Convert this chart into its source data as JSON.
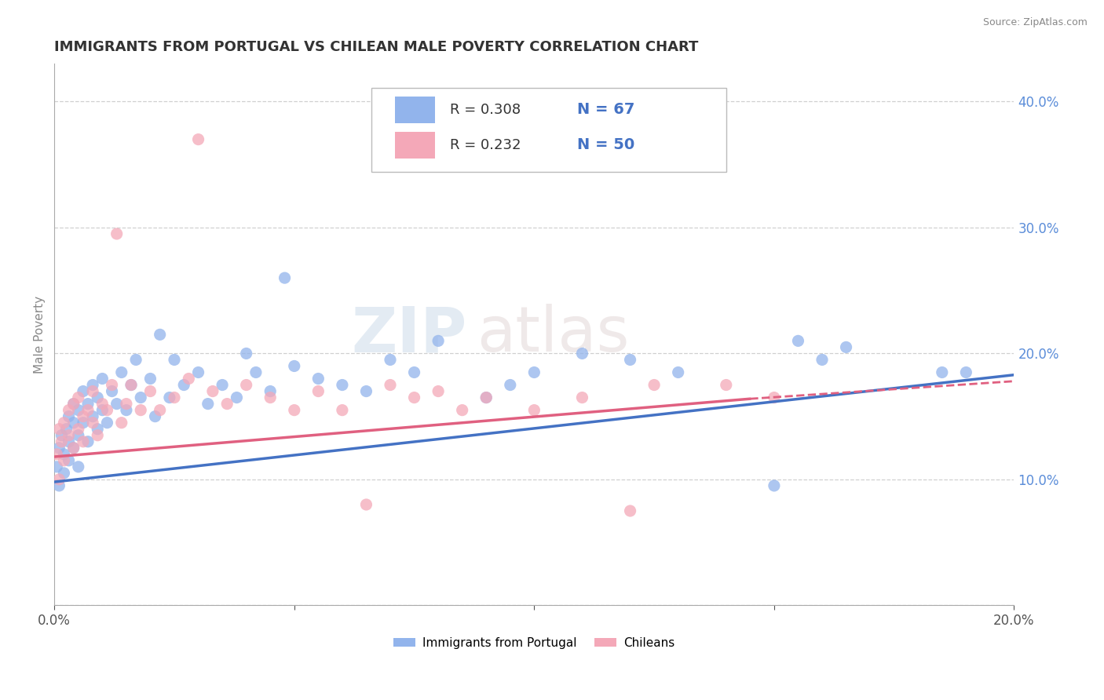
{
  "title": "IMMIGRANTS FROM PORTUGAL VS CHILEAN MALE POVERTY CORRELATION CHART",
  "source": "Source: ZipAtlas.com",
  "ylabel": "Male Poverty",
  "xlim": [
    0.0,
    0.2
  ],
  "ylim": [
    0.0,
    0.43
  ],
  "x_ticks": [
    0.0,
    0.05,
    0.1,
    0.15,
    0.2
  ],
  "x_tick_labels": [
    "0.0%",
    "",
    "",
    "",
    "20.0%"
  ],
  "y_ticks": [
    0.0,
    0.1,
    0.2,
    0.3,
    0.4
  ],
  "y_tick_labels": [
    "",
    "10.0%",
    "20.0%",
    "30.0%",
    "40.0%"
  ],
  "legend1_label": "Immigrants from Portugal",
  "legend2_label": "Chileans",
  "R1": 0.308,
  "N1": 67,
  "R2": 0.232,
  "N2": 50,
  "color1": "#92B4EC",
  "color2": "#F4A8B8",
  "line1_color": "#4472C4",
  "line2_color": "#E06080",
  "watermark_zip": "ZIP",
  "watermark_atlas": "atlas",
  "background_color": "#ffffff",
  "grid_color": "#d0d0d0",
  "title_color": "#333333",
  "blue_scatter_x": [
    0.0005,
    0.001,
    0.001,
    0.0015,
    0.002,
    0.002,
    0.0025,
    0.003,
    0.003,
    0.003,
    0.004,
    0.004,
    0.004,
    0.005,
    0.005,
    0.005,
    0.006,
    0.006,
    0.007,
    0.007,
    0.008,
    0.008,
    0.009,
    0.009,
    0.01,
    0.01,
    0.011,
    0.012,
    0.013,
    0.014,
    0.015,
    0.016,
    0.017,
    0.018,
    0.02,
    0.021,
    0.022,
    0.024,
    0.025,
    0.027,
    0.03,
    0.032,
    0.035,
    0.038,
    0.04,
    0.042,
    0.045,
    0.048,
    0.05,
    0.055,
    0.06,
    0.065,
    0.07,
    0.075,
    0.08,
    0.09,
    0.095,
    0.1,
    0.11,
    0.12,
    0.13,
    0.15,
    0.155,
    0.16,
    0.165,
    0.185,
    0.19
  ],
  "blue_scatter_y": [
    0.11,
    0.125,
    0.095,
    0.135,
    0.12,
    0.105,
    0.14,
    0.13,
    0.115,
    0.15,
    0.125,
    0.145,
    0.16,
    0.11,
    0.135,
    0.155,
    0.145,
    0.17,
    0.13,
    0.16,
    0.15,
    0.175,
    0.14,
    0.165,
    0.155,
    0.18,
    0.145,
    0.17,
    0.16,
    0.185,
    0.155,
    0.175,
    0.195,
    0.165,
    0.18,
    0.15,
    0.215,
    0.165,
    0.195,
    0.175,
    0.185,
    0.16,
    0.175,
    0.165,
    0.2,
    0.185,
    0.17,
    0.26,
    0.19,
    0.18,
    0.175,
    0.17,
    0.195,
    0.185,
    0.21,
    0.165,
    0.175,
    0.185,
    0.2,
    0.195,
    0.185,
    0.095,
    0.21,
    0.195,
    0.205,
    0.185,
    0.185
  ],
  "pink_scatter_x": [
    0.0005,
    0.001,
    0.001,
    0.0015,
    0.002,
    0.002,
    0.003,
    0.003,
    0.004,
    0.004,
    0.005,
    0.005,
    0.006,
    0.006,
    0.007,
    0.008,
    0.008,
    0.009,
    0.01,
    0.011,
    0.012,
    0.013,
    0.014,
    0.015,
    0.016,
    0.018,
    0.02,
    0.022,
    0.025,
    0.028,
    0.03,
    0.033,
    0.036,
    0.04,
    0.045,
    0.05,
    0.055,
    0.06,
    0.065,
    0.07,
    0.075,
    0.08,
    0.085,
    0.09,
    0.1,
    0.11,
    0.12,
    0.125,
    0.14,
    0.15
  ],
  "pink_scatter_y": [
    0.12,
    0.1,
    0.14,
    0.13,
    0.115,
    0.145,
    0.135,
    0.155,
    0.125,
    0.16,
    0.14,
    0.165,
    0.13,
    0.15,
    0.155,
    0.145,
    0.17,
    0.135,
    0.16,
    0.155,
    0.175,
    0.295,
    0.145,
    0.16,
    0.175,
    0.155,
    0.17,
    0.155,
    0.165,
    0.18,
    0.37,
    0.17,
    0.16,
    0.175,
    0.165,
    0.155,
    0.17,
    0.155,
    0.08,
    0.175,
    0.165,
    0.17,
    0.155,
    0.165,
    0.155,
    0.165,
    0.075,
    0.175,
    0.175,
    0.165
  ],
  "line1_start_x": 0.0,
  "line1_start_y": 0.098,
  "line1_end_x": 0.2,
  "line1_end_y": 0.183,
  "line2_start_x": 0.0,
  "line2_start_y": 0.118,
  "line2_end_x": 0.2,
  "line2_end_y": 0.178,
  "line2_solid_end_x": 0.145,
  "line2_solid_end_y": 0.164
}
